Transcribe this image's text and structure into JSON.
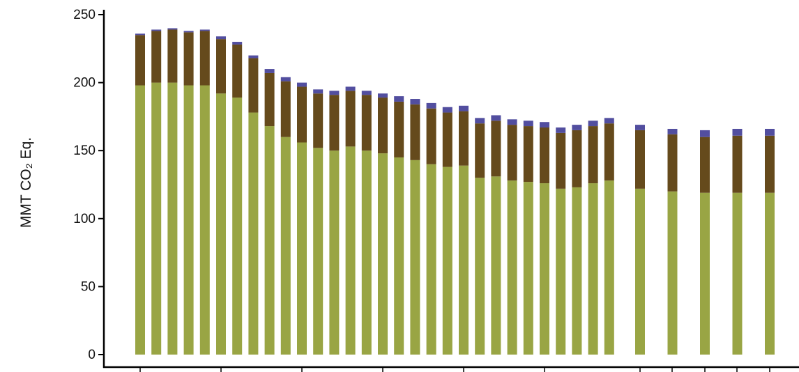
{
  "chart_data": {
    "type": "bar",
    "stacked": true,
    "ylabel": "MMT CO₂ Eq.",
    "ylim": [
      0,
      250
    ],
    "yticks": [
      0,
      50,
      100,
      150,
      200,
      250
    ],
    "grid": false,
    "legend": "none",
    "series": [
      {
        "color": "#99a544",
        "values": [
          198,
          200,
          200,
          198,
          198,
          192,
          189,
          178,
          168,
          160,
          156,
          152,
          150,
          153,
          150,
          148,
          145,
          143,
          140,
          138,
          139,
          130,
          131,
          128,
          127,
          126,
          122,
          123,
          126,
          128,
          122,
          120,
          119,
          119,
          119
        ]
      },
      {
        "color": "#654a1c",
        "values": [
          37,
          38,
          39,
          39,
          40,
          40,
          39,
          40,
          39,
          41,
          41,
          40,
          41,
          41,
          41,
          41,
          41,
          41,
          41,
          40,
          40,
          40,
          41,
          41,
          41,
          41,
          41,
          42,
          42,
          42,
          43,
          42,
          41,
          42,
          42
        ]
      },
      {
        "color": "#524e9f",
        "values": [
          1,
          1,
          1,
          1,
          1,
          2,
          2,
          2,
          3,
          3,
          3,
          3,
          3,
          3,
          3,
          3,
          4,
          4,
          4,
          4,
          4,
          4,
          4,
          4,
          4,
          4,
          4,
          4,
          4,
          4,
          4,
          4,
          5,
          5,
          5
        ]
      }
    ]
  }
}
